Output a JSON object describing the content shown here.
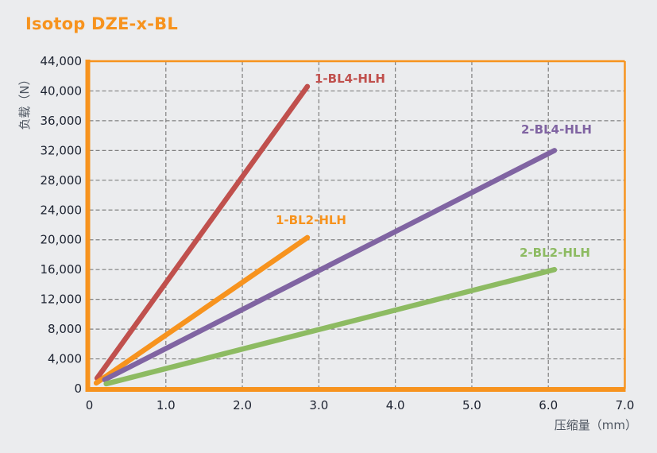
{
  "title": "Isotop DZE-x-BL",
  "colors": {
    "title": "#f7931e",
    "frame": "#f7931e",
    "grid": "#808080",
    "background": "#ebecee"
  },
  "chart_data": {
    "type": "line",
    "title": "Isotop DZE-x-BL",
    "xlabel": "压缩量（mm）",
    "ylabel": "负载（N）",
    "xlim": [
      0,
      7.0
    ],
    "ylim": [
      0,
      44000
    ],
    "grid": true,
    "legend_position": "inline labels at line ends",
    "x_ticks": [
      "0",
      "1.0",
      "2.0",
      "3.0",
      "4.0",
      "5.0",
      "6.0",
      "7.0"
    ],
    "y_ticks": [
      "0",
      "4,000",
      "8,000",
      "12,000",
      "16,000",
      "20,000",
      "24,000",
      "28,000",
      "32,000",
      "36,000",
      "40,000",
      "44,000"
    ],
    "series": [
      {
        "name": "1-BL4-HLH",
        "color": "#c0504d",
        "x": [
          0.1,
          2.85
        ],
        "y": [
          1400,
          40600
        ]
      },
      {
        "name": "1-BL2-HLH",
        "color": "#f7931e",
        "x": [
          0.09,
          2.85
        ],
        "y": [
          750,
          20300
        ]
      },
      {
        "name": "2-BL4-HLH",
        "color": "#8064a2",
        "x": [
          0.2,
          6.08
        ],
        "y": [
          1200,
          32000
        ]
      },
      {
        "name": "2-BL2-HLH",
        "color": "#8dbb62",
        "x": [
          0.22,
          6.08
        ],
        "y": [
          650,
          16000
        ]
      }
    ]
  }
}
